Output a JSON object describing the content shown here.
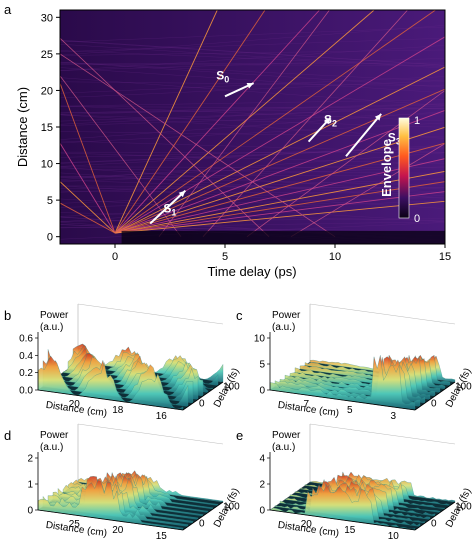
{
  "chart_data": [
    {
      "panel": "a",
      "type": "heatmap",
      "xlabel": "Time delay (ps)",
      "ylabel": "Distance (cm)",
      "xticks": [
        "0",
        "5",
        "10",
        "15"
      ],
      "yticks": [
        "0",
        "5",
        "10",
        "15",
        "20",
        "25",
        "30"
      ],
      "xlim": [
        -2.5,
        15
      ],
      "ylim": [
        -1,
        31
      ],
      "colorbar": {
        "label": "Envelope",
        "ticks": [
          "1",
          "0"
        ],
        "colors": [
          "#fffde0",
          "#ffc043",
          "#ff5a1f",
          "#c4144e",
          "#3b0f62",
          "#0a0015"
        ]
      },
      "annotations": [
        {
          "text": "S",
          "sub": "0",
          "x": 4.6,
          "y": 21.5
        },
        {
          "text": "S",
          "sub": "1",
          "x": 2.2,
          "y": 3.3
        },
        {
          "text": "S",
          "sub": "2",
          "x": 9.5,
          "y": 15.5
        },
        {
          "text": "S",
          "sub": "3",
          "x": 12.4,
          "y": 13.0
        }
      ],
      "arrows": [
        {
          "from": [
            5.0,
            19.2
          ],
          "to": [
            6.3,
            21.0
          ]
        },
        {
          "from": [
            1.6,
            1.8
          ],
          "to": [
            3.2,
            6.3
          ]
        },
        {
          "from": [
            8.8,
            13.0
          ],
          "to": [
            9.8,
            16.3
          ]
        },
        {
          "from": [
            10.5,
            11.0
          ],
          "to": [
            12.1,
            16.8
          ]
        }
      ],
      "trajectories_velocity_ps_per_cm": [
        0.15,
        0.22,
        0.3,
        0.38,
        0.47,
        0.55,
        0.65,
        0.75,
        0.88,
        1.02,
        1.2,
        1.45,
        1.75,
        2.1,
        2.6,
        3.4,
        -0.12,
        -0.2,
        -0.35,
        -0.6
      ]
    },
    {
      "panel": "b",
      "type": "surface3d",
      "zlabel": "Power\n(a.u.)",
      "zticks": [
        "0.0",
        "0.2",
        "0.4",
        "0.6"
      ],
      "xlabel": "Distance (cm)",
      "xticks": [
        "20",
        "18",
        "16"
      ],
      "ylabel": "Delay (fs)",
      "yticks": [
        "0",
        "100"
      ]
    },
    {
      "panel": "c",
      "type": "surface3d",
      "zlabel": "Power\n(a.u.)",
      "zticks": [
        "0",
        "5",
        "10"
      ],
      "xlabel": "Distance (cm)",
      "xticks": [
        "7",
        "5",
        "3"
      ],
      "ylabel": "Delay (fs)",
      "yticks": [
        "0",
        "100"
      ]
    },
    {
      "panel": "d",
      "type": "surface3d",
      "zlabel": "Power\n(a.u.)",
      "zticks": [
        "0",
        "1",
        "2"
      ],
      "xlabel": "Distance (cm)",
      "xticks": [
        "25",
        "20",
        "15"
      ],
      "ylabel": "Delay (fs)",
      "yticks": [
        "0",
        "100"
      ]
    },
    {
      "panel": "e",
      "type": "surface3d",
      "zlabel": "Power\n(a.u.)",
      "zticks": [
        "0",
        "2",
        "4"
      ],
      "xlabel": "Distance (cm)",
      "xticks": [
        "20",
        "15",
        "10"
      ],
      "ylabel": "Delay (fs)",
      "yticks": [
        "0",
        "100"
      ]
    }
  ],
  "panel_letters": [
    "a",
    "b",
    "c",
    "d",
    "e"
  ]
}
